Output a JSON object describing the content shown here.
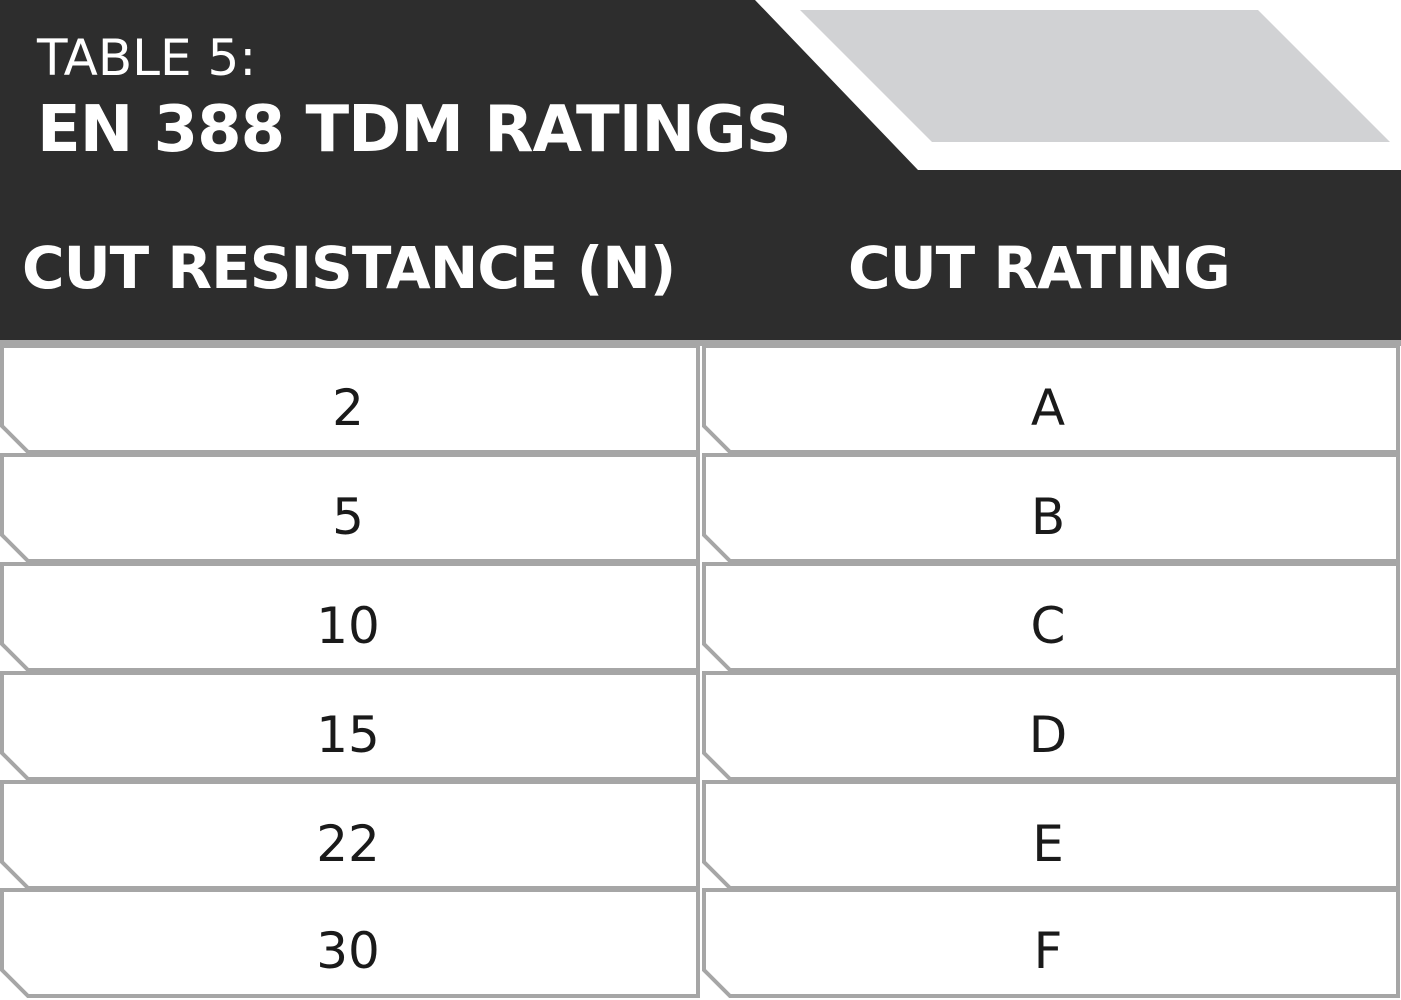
{
  "table": {
    "label": "TABLE 5:",
    "title": "EN 388 TDM RATINGS",
    "headers": [
      "CUT RESISTANCE (N)",
      "CUT RATING"
    ],
    "rows": [
      {
        "resistance": "2",
        "rating": "A"
      },
      {
        "resistance": "5",
        "rating": "B"
      },
      {
        "resistance": "10",
        "rating": "C"
      },
      {
        "resistance": "15",
        "rating": "D"
      },
      {
        "resistance": "22",
        "rating": "E"
      },
      {
        "resistance": "30",
        "rating": "F"
      }
    ]
  },
  "colors": {
    "header_bg": "#2d2d2d",
    "accent_gray": "#d1d2d4",
    "border_gray": "#a6a6a6",
    "text_light": "#ffffff",
    "text_dark": "#1a1a1a"
  }
}
